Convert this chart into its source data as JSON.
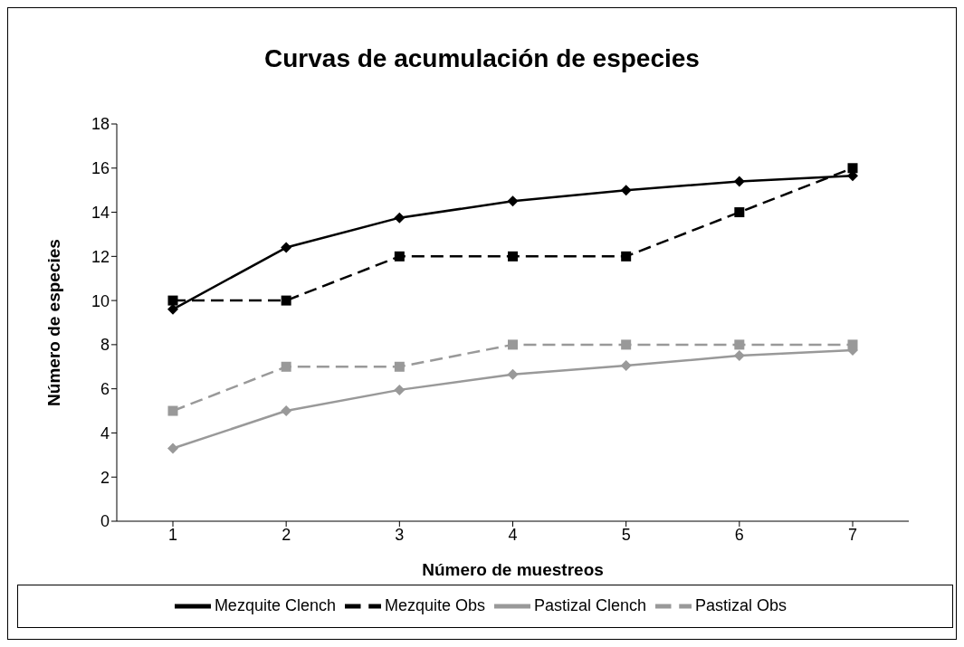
{
  "chart_data": {
    "type": "line",
    "title": "Curvas de acumulación de especies",
    "xlabel": "Número de muestreos",
    "ylabel": "Número de especies",
    "categories": [
      "1",
      "2",
      "3",
      "4",
      "5",
      "6",
      "7"
    ],
    "series": [
      {
        "name": "Mezquite Clench",
        "color": "#000000",
        "marker": "diamond",
        "line_style": "solid",
        "values": [
          9.6,
          12.4,
          13.75,
          14.5,
          15.0,
          15.4,
          15.65
        ]
      },
      {
        "name": "Mezquite Obs",
        "color": "#000000",
        "marker": "square",
        "line_style": "dashed",
        "values": [
          10,
          10,
          12,
          12,
          12,
          14,
          16
        ]
      },
      {
        "name": "Pastizal Clench",
        "color": "#999999",
        "marker": "diamond",
        "line_style": "solid",
        "values": [
          3.3,
          5.0,
          5.95,
          6.65,
          7.05,
          7.5,
          7.75
        ]
      },
      {
        "name": "Pastizal Obs",
        "color": "#999999",
        "marker": "square",
        "line_style": "dashed",
        "values": [
          5,
          7,
          7,
          8,
          8,
          8,
          8
        ]
      }
    ],
    "ylim": [
      0,
      18
    ],
    "yticks": [
      0,
      2,
      4,
      6,
      8,
      10,
      12,
      14,
      16,
      18
    ],
    "grid": false,
    "legend": "bottom"
  }
}
